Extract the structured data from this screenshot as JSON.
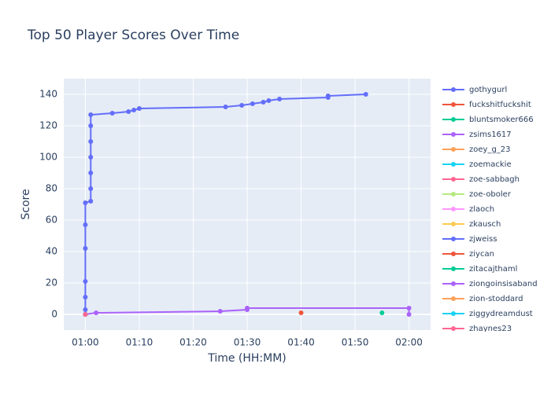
{
  "chart_data": {
    "type": "line",
    "title": "Top 50 Player Scores Over Time",
    "x_label": "Time (HH:MM)",
    "y_label": "Score",
    "xlim": [
      "00:56",
      "02:04"
    ],
    "xticks": [
      "01:00",
      "01:10",
      "01:20",
      "01:30",
      "01:40",
      "01:50",
      "02:00"
    ],
    "ylim": [
      -10,
      150
    ],
    "yticks": [
      0,
      20,
      40,
      60,
      80,
      100,
      120,
      140
    ],
    "grid": true,
    "legend": "right",
    "series": [
      {
        "name": "gothygurl",
        "color": "#636efa",
        "x": [
          "01:00",
          "01:00",
          "01:00",
          "01:00",
          "01:00",
          "01:00",
          "01:01",
          "01:01",
          "01:01",
          "01:01",
          "01:01",
          "01:01",
          "01:01",
          "01:05",
          "01:08",
          "01:09",
          "01:10",
          "01:26",
          "01:29",
          "01:31",
          "01:33",
          "01:34",
          "01:36",
          "01:45",
          "01:45",
          "01:52"
        ],
        "values": [
          3,
          11,
          21,
          42,
          57,
          71,
          72,
          80,
          90,
          100,
          110,
          120,
          127,
          128,
          129,
          130,
          131,
          132,
          133,
          134,
          135,
          136,
          137,
          138,
          139,
          140
        ]
      },
      {
        "name": "fuckshitfuckshit",
        "color": "#ef553b",
        "x": [
          "01:40"
        ],
        "values": [
          1
        ]
      },
      {
        "name": "bluntsmoker666",
        "color": "#00cc96",
        "x": [
          "01:55"
        ],
        "values": [
          1
        ]
      },
      {
        "name": "zsims1617",
        "color": "#ab63fa",
        "x": [
          "01:00",
          "01:02",
          "01:25",
          "01:30",
          "01:30",
          "02:00",
          "02:00"
        ],
        "values": [
          0,
          1,
          2,
          3,
          4,
          4,
          0
        ]
      },
      {
        "name": "zoey_g_23",
        "color": "#ffa15a",
        "x": [
          "01:00"
        ],
        "values": [
          0
        ]
      },
      {
        "name": "zoemackie",
        "color": "#19d3f3",
        "x": [
          "01:00"
        ],
        "values": [
          0
        ]
      },
      {
        "name": "zoe-sabbagh",
        "color": "#ff6692",
        "x": [
          "01:00"
        ],
        "values": [
          0
        ]
      },
      {
        "name": "zoe-oboler",
        "color": "#b6e880",
        "x": [
          "01:00"
        ],
        "values": [
          0
        ]
      },
      {
        "name": "zlaoch",
        "color": "#ff97ff",
        "x": [
          "01:00"
        ],
        "values": [
          0
        ]
      },
      {
        "name": "zkausch",
        "color": "#fecb52",
        "x": [
          "01:00"
        ],
        "values": [
          0
        ]
      },
      {
        "name": "zjweiss",
        "color": "#636efa",
        "x": [
          "01:00"
        ],
        "values": [
          0
        ]
      },
      {
        "name": "ziycan",
        "color": "#ef553b",
        "x": [
          "01:00"
        ],
        "values": [
          0
        ]
      },
      {
        "name": "zitacajthaml",
        "color": "#00cc96",
        "x": [
          "01:00"
        ],
        "values": [
          0
        ]
      },
      {
        "name": "ziongoinsisaband",
        "color": "#ab63fa",
        "x": [
          "01:00"
        ],
        "values": [
          0
        ]
      },
      {
        "name": "zion-stoddard",
        "color": "#ffa15a",
        "x": [
          "01:00"
        ],
        "values": [
          0
        ]
      },
      {
        "name": "ziggydreamdust",
        "color": "#19d3f3",
        "x": [
          "01:00"
        ],
        "values": [
          0
        ]
      },
      {
        "name": "zhaynes23",
        "color": "#ff6692",
        "x": [
          "01:00"
        ],
        "values": [
          0
        ]
      }
    ]
  }
}
